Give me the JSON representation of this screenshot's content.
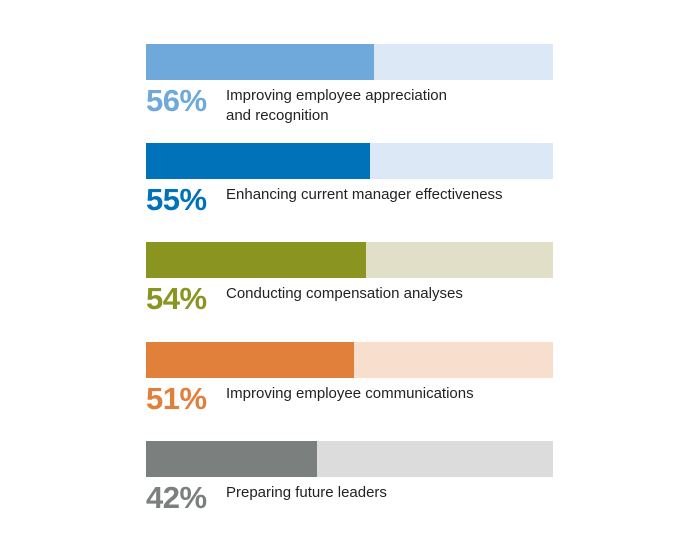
{
  "chart_data": {
    "type": "progress-bar",
    "categories": [
      "Improving employee appreciation\nand recognition",
      "Enhancing current manager effectiveness",
      "Conducting compensation analyses",
      "Improving employee communications",
      "Preparing future leaders"
    ],
    "values": [
      56,
      55,
      54,
      51,
      42
    ],
    "value_labels": [
      "56%",
      "55%",
      "54%",
      "51%",
      "42%"
    ],
    "colors": [
      "#6fa9dc",
      "#0072b9",
      "#8a9421",
      "#e0803b",
      "#7b7f7e"
    ],
    "track_colors": [
      "#dde8f6",
      "#dde8f6",
      "#e2dfc8",
      "#f8dfcd",
      "#dcdcdc"
    ],
    "xlim": [
      0,
      100
    ]
  }
}
